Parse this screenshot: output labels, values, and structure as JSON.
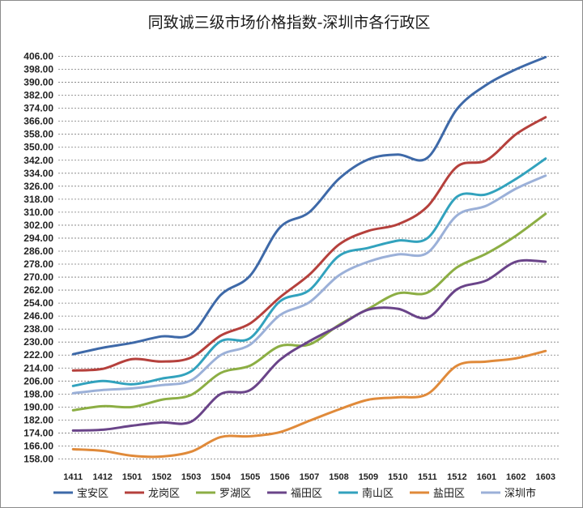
{
  "chart_data": {
    "type": "line",
    "title": "同致诚三级市场价格指数-深圳市各行政区",
    "xlabel": "",
    "ylabel": "",
    "categories": [
      "1411",
      "1412",
      "1501",
      "1502",
      "1503",
      "1504",
      "1505",
      "1506",
      "1507",
      "1508",
      "1509",
      "1510",
      "1511",
      "1512",
      "1601",
      "1602",
      "1603"
    ],
    "ylim": [
      158,
      406
    ],
    "ytick_step": 8,
    "ytick_labels": [
      "158.00",
      "166.00",
      "174.00",
      "182.00",
      "190.00",
      "198.00",
      "206.00",
      "214.00",
      "222.00",
      "230.00",
      "238.00",
      "246.00",
      "254.00",
      "262.00",
      "270.00",
      "278.00",
      "286.00",
      "294.00",
      "302.00",
      "310.00",
      "318.00",
      "326.00",
      "334.00",
      "342.00",
      "350.00",
      "358.00",
      "366.00",
      "374.00",
      "382.00",
      "390.00",
      "398.00",
      "406.00"
    ],
    "grid": true,
    "legend_position": "bottom",
    "series": [
      {
        "name": "宝安区",
        "color": "#3e69a8",
        "values": [
          222.5,
          226.5,
          229.5,
          233.5,
          235,
          259,
          271,
          300.5,
          310,
          330.5,
          342.5,
          345.5,
          343.5,
          373.5,
          388.5,
          398,
          405.5
        ]
      },
      {
        "name": "龙岗区",
        "color": "#b5403c",
        "values": [
          212.5,
          213.5,
          219.5,
          218,
          220.5,
          234,
          241.5,
          257.5,
          271.5,
          290,
          298.5,
          302.5,
          313.5,
          338,
          342,
          358,
          368.5
        ]
      },
      {
        "name": "罗湖区",
        "color": "#8cae44",
        "values": [
          188,
          190.5,
          190,
          194.5,
          197.5,
          211,
          215.5,
          227.5,
          228.5,
          240.5,
          250.5,
          260,
          260.5,
          276,
          284.5,
          295.5,
          309
        ]
      },
      {
        "name": "福田区",
        "color": "#6a4489",
        "values": [
          175.5,
          176,
          178.5,
          180.5,
          181,
          198,
          200.5,
          219,
          230.5,
          240,
          250,
          250.5,
          245,
          262.5,
          268,
          279.5,
          279.5
        ]
      },
      {
        "name": "南山区",
        "color": "#32a2bd",
        "values": [
          203,
          206,
          204,
          207.5,
          212,
          230.5,
          232.5,
          255,
          262,
          283,
          288,
          292.5,
          294,
          319.5,
          321,
          330.5,
          343
        ]
      },
      {
        "name": "盐田区",
        "color": "#e08a3a",
        "values": [
          164,
          163,
          160,
          159.5,
          162.5,
          171.5,
          172,
          174.5,
          181.5,
          188.5,
          194.5,
          196,
          198,
          215.5,
          218,
          220,
          224.5
        ]
      },
      {
        "name": "深圳市",
        "color": "#9bb0d8",
        "values": [
          198.5,
          200.5,
          201.5,
          203.5,
          206.5,
          222,
          228.5,
          246.5,
          254.5,
          271,
          279.5,
          284,
          285,
          308,
          314,
          324.5,
          332.5
        ]
      }
    ]
  }
}
